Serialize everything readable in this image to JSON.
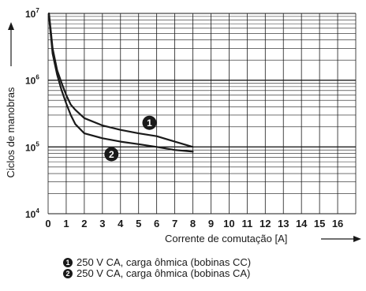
{
  "chart_data": {
    "type": "line",
    "x_scale": "linear",
    "y_scale": "log",
    "xlim": [
      0,
      17
    ],
    "ylim": [
      10000,
      10000000
    ],
    "x_ticks": [
      "0",
      "1",
      "2",
      "3",
      "4",
      "5",
      "6",
      "7",
      "8",
      "9",
      "10",
      "11",
      "12",
      "13",
      "14",
      "15",
      "16"
    ],
    "y_ticks": [
      {
        "base": "10",
        "exp": "4",
        "value": 10000
      },
      {
        "base": "10",
        "exp": "5",
        "value": 100000
      },
      {
        "base": "10",
        "exp": "6",
        "value": 1000000
      },
      {
        "base": "10",
        "exp": "7",
        "value": 10000000
      }
    ],
    "xlabel": "Corrente de comutação [A]",
    "ylabel": "Ciclos de manobras",
    "grid": true,
    "series": [
      {
        "marker": "1",
        "name": "250 V CA, carga ôhmica (bobinas CC)",
        "x": [
          0.05,
          0.25,
          0.5,
          0.75,
          1.0,
          1.25,
          1.5,
          2.0,
          3.0,
          4.0,
          5.0,
          6.0,
          7.0,
          8.0
        ],
        "y": [
          10000000,
          3000000,
          1400000,
          900000,
          600000,
          430000,
          360000,
          270000,
          210000,
          180000,
          160000,
          145000,
          120000,
          100000
        ]
      },
      {
        "marker": "2",
        "name": "250 V CA, carga ôhmica (bobinas CA)",
        "x": [
          0.05,
          0.25,
          0.5,
          0.75,
          1.0,
          1.25,
          1.5,
          2.0,
          3.0,
          4.0,
          5.0,
          6.0,
          7.0,
          8.0
        ],
        "y": [
          9000000,
          2500000,
          1200000,
          700000,
          450000,
          300000,
          220000,
          160000,
          135000,
          120000,
          110000,
          100000,
          90000,
          85000
        ]
      }
    ],
    "color": "#1a1a1a"
  }
}
